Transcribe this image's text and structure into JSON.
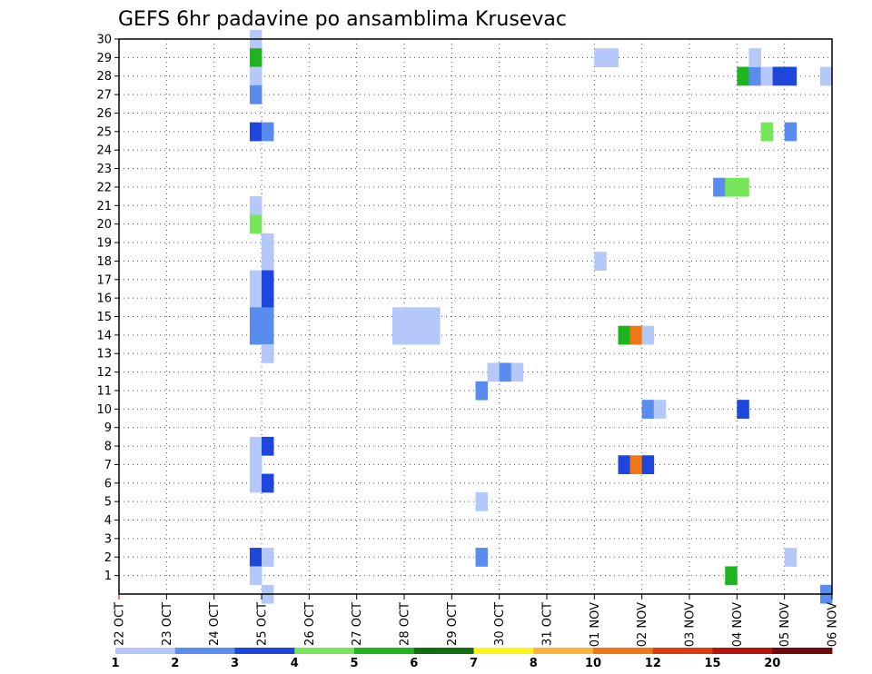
{
  "chart_data": {
    "type": "heatmap",
    "title": "GEFS 6hr padavine po ansamblima Krusevac",
    "xlabel": "",
    "ylabel": "",
    "x_ticks": [
      "22 OCT",
      "23 OCT",
      "24 OCT",
      "25 OCT",
      "26 OCT",
      "27 OCT",
      "28 OCT",
      "29 OCT",
      "30 OCT",
      "31 OCT",
      "01 NOV",
      "02 NOV",
      "03 NOV",
      "04 NOV",
      "05 NOV",
      "06 NOV"
    ],
    "y_ticks": [
      "1",
      "2",
      "3",
      "4",
      "5",
      "6",
      "7",
      "8",
      "9",
      "10",
      "11",
      "12",
      "13",
      "14",
      "15",
      "16",
      "17",
      "18",
      "19",
      "20",
      "21",
      "22",
      "23",
      "24",
      "25",
      "26",
      "27",
      "28",
      "29",
      "30"
    ],
    "xlim": [
      0,
      15
    ],
    "ylim": [
      0,
      30
    ],
    "steps_per_day": 4,
    "grid": true,
    "colorbar": {
      "levels": [
        "1",
        "2",
        "3",
        "4",
        "5",
        "6",
        "7",
        "8",
        "10",
        "12",
        "15",
        "20"
      ],
      "colors": [
        "#b4c8fa",
        "#5a8cf0",
        "#1e46dc",
        "#78e65a",
        "#1eb41e",
        "#0f6e0f",
        "#faf514",
        "#fab43c",
        "#f07814",
        "#dc3c0f",
        "#b4140f",
        "#6e0a0a"
      ]
    },
    "cells": [
      {
        "t": 11,
        "m": 30,
        "c": 1
      },
      {
        "t": 11,
        "m": 29,
        "c": 5
      },
      {
        "t": 11,
        "m": 28,
        "c": 1
      },
      {
        "t": 11,
        "m": 27,
        "c": 2
      },
      {
        "t": 11,
        "m": 25,
        "c": 3
      },
      {
        "t": 12,
        "m": 25,
        "c": 2
      },
      {
        "t": 11,
        "m": 21,
        "c": 1
      },
      {
        "t": 11,
        "m": 20,
        "c": 4
      },
      {
        "t": 12,
        "m": 19,
        "c": 1
      },
      {
        "t": 12,
        "m": 18,
        "c": 1
      },
      {
        "t": 11,
        "m": 17,
        "c": 1
      },
      {
        "t": 12,
        "m": 17,
        "c": 3
      },
      {
        "t": 11,
        "m": 16,
        "c": 1
      },
      {
        "t": 12,
        "m": 16,
        "c": 3
      },
      {
        "t": 11,
        "m": 15,
        "c": 2
      },
      {
        "t": 12,
        "m": 15,
        "c": 2
      },
      {
        "t": 11,
        "m": 14,
        "c": 2
      },
      {
        "t": 12,
        "m": 14,
        "c": 2
      },
      {
        "t": 12,
        "m": 13,
        "c": 1
      },
      {
        "t": 11,
        "m": 8,
        "c": 1
      },
      {
        "t": 12,
        "m": 8,
        "c": 3
      },
      {
        "t": 11,
        "m": 7,
        "c": 1
      },
      {
        "t": 11,
        "m": 6,
        "c": 1
      },
      {
        "t": 12,
        "m": 6,
        "c": 3
      },
      {
        "t": 11,
        "m": 2,
        "c": 3
      },
      {
        "t": 12,
        "m": 2,
        "c": 1
      },
      {
        "t": 11,
        "m": 1,
        "c": 1
      },
      {
        "t": 12,
        "m": 0,
        "c": 1
      },
      {
        "t": 31,
        "m": 12,
        "c": 1
      },
      {
        "t": 32,
        "m": 12,
        "c": 2
      },
      {
        "t": 33,
        "m": 12,
        "c": 1
      },
      {
        "t": 30,
        "m": 11,
        "c": 2
      },
      {
        "t": 30,
        "m": 5,
        "c": 1
      },
      {
        "t": 30,
        "m": 2,
        "c": 2
      },
      {
        "t": 23,
        "m": 15,
        "c": 1
      },
      {
        "t": 24,
        "m": 15,
        "c": 1
      },
      {
        "t": 25,
        "m": 15,
        "c": 1
      },
      {
        "t": 26,
        "m": 15,
        "c": 1
      },
      {
        "t": 23,
        "m": 14,
        "c": 1
      },
      {
        "t": 24,
        "m": 14,
        "c": 1
      },
      {
        "t": 25,
        "m": 14,
        "c": 1
      },
      {
        "t": 26,
        "m": 14,
        "c": 1
      },
      {
        "t": 40,
        "m": 29,
        "c": 1
      },
      {
        "t": 41,
        "m": 29,
        "c": 1
      },
      {
        "t": 40,
        "m": 18,
        "c": 1
      },
      {
        "t": 42,
        "m": 14,
        "c": 5
      },
      {
        "t": 43,
        "m": 14,
        "c": 9
      },
      {
        "t": 44,
        "m": 14,
        "c": 1
      },
      {
        "t": 42,
        "m": 7,
        "c": 3
      },
      {
        "t": 43,
        "m": 7,
        "c": 9
      },
      {
        "t": 44,
        "m": 7,
        "c": 3
      },
      {
        "t": 44,
        "m": 10,
        "c": 2
      },
      {
        "t": 45,
        "m": 10,
        "c": 1
      },
      {
        "t": 52,
        "m": 28,
        "c": 5
      },
      {
        "t": 53,
        "m": 28,
        "c": 2
      },
      {
        "t": 54,
        "m": 28,
        "c": 1
      },
      {
        "t": 55,
        "m": 28,
        "c": 3
      },
      {
        "t": 56,
        "m": 28,
        "c": 3
      },
      {
        "t": 59,
        "m": 28,
        "c": 1
      },
      {
        "t": 53,
        "m": 29,
        "c": 1
      },
      {
        "t": 54,
        "m": 25,
        "c": 4
      },
      {
        "t": 56,
        "m": 25,
        "c": 2
      },
      {
        "t": 50,
        "m": 22,
        "c": 2
      },
      {
        "t": 51,
        "m": 22,
        "c": 4
      },
      {
        "t": 52,
        "m": 22,
        "c": 4
      },
      {
        "t": 52,
        "m": 10,
        "c": 3
      },
      {
        "t": 51,
        "m": 1,
        "c": 5
      },
      {
        "t": 56,
        "m": 2,
        "c": 1
      },
      {
        "t": 59,
        "m": 0,
        "c": 2
      }
    ]
  }
}
